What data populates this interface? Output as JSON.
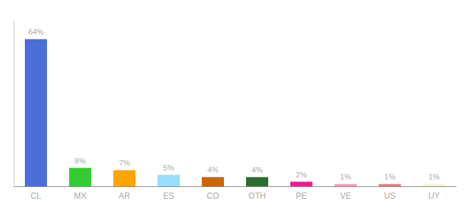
{
  "chart_data": {
    "type": "bar",
    "categories": [
      "CL",
      "MX",
      "AR",
      "ES",
      "CO",
      "OTH",
      "PE",
      "VE",
      "US",
      "UY"
    ],
    "values": [
      64,
      8,
      7,
      5,
      4,
      4,
      2,
      1,
      1,
      1
    ],
    "value_labels": [
      "64%",
      "8%",
      "7%",
      "5%",
      "4%",
      "4%",
      "2%",
      "1%",
      "1%",
      "1%"
    ],
    "colors": [
      "#4a6fd8",
      "#33cc33",
      "#ffa500",
      "#99ddff",
      "#cc6600",
      "#2d6a2d",
      "#ff1493",
      "#ff99bb",
      "#e08080",
      "#f5f5cc"
    ],
    "ylim": [
      0,
      72
    ],
    "data_labels": true,
    "tick_labels": "x",
    "grid": false
  }
}
